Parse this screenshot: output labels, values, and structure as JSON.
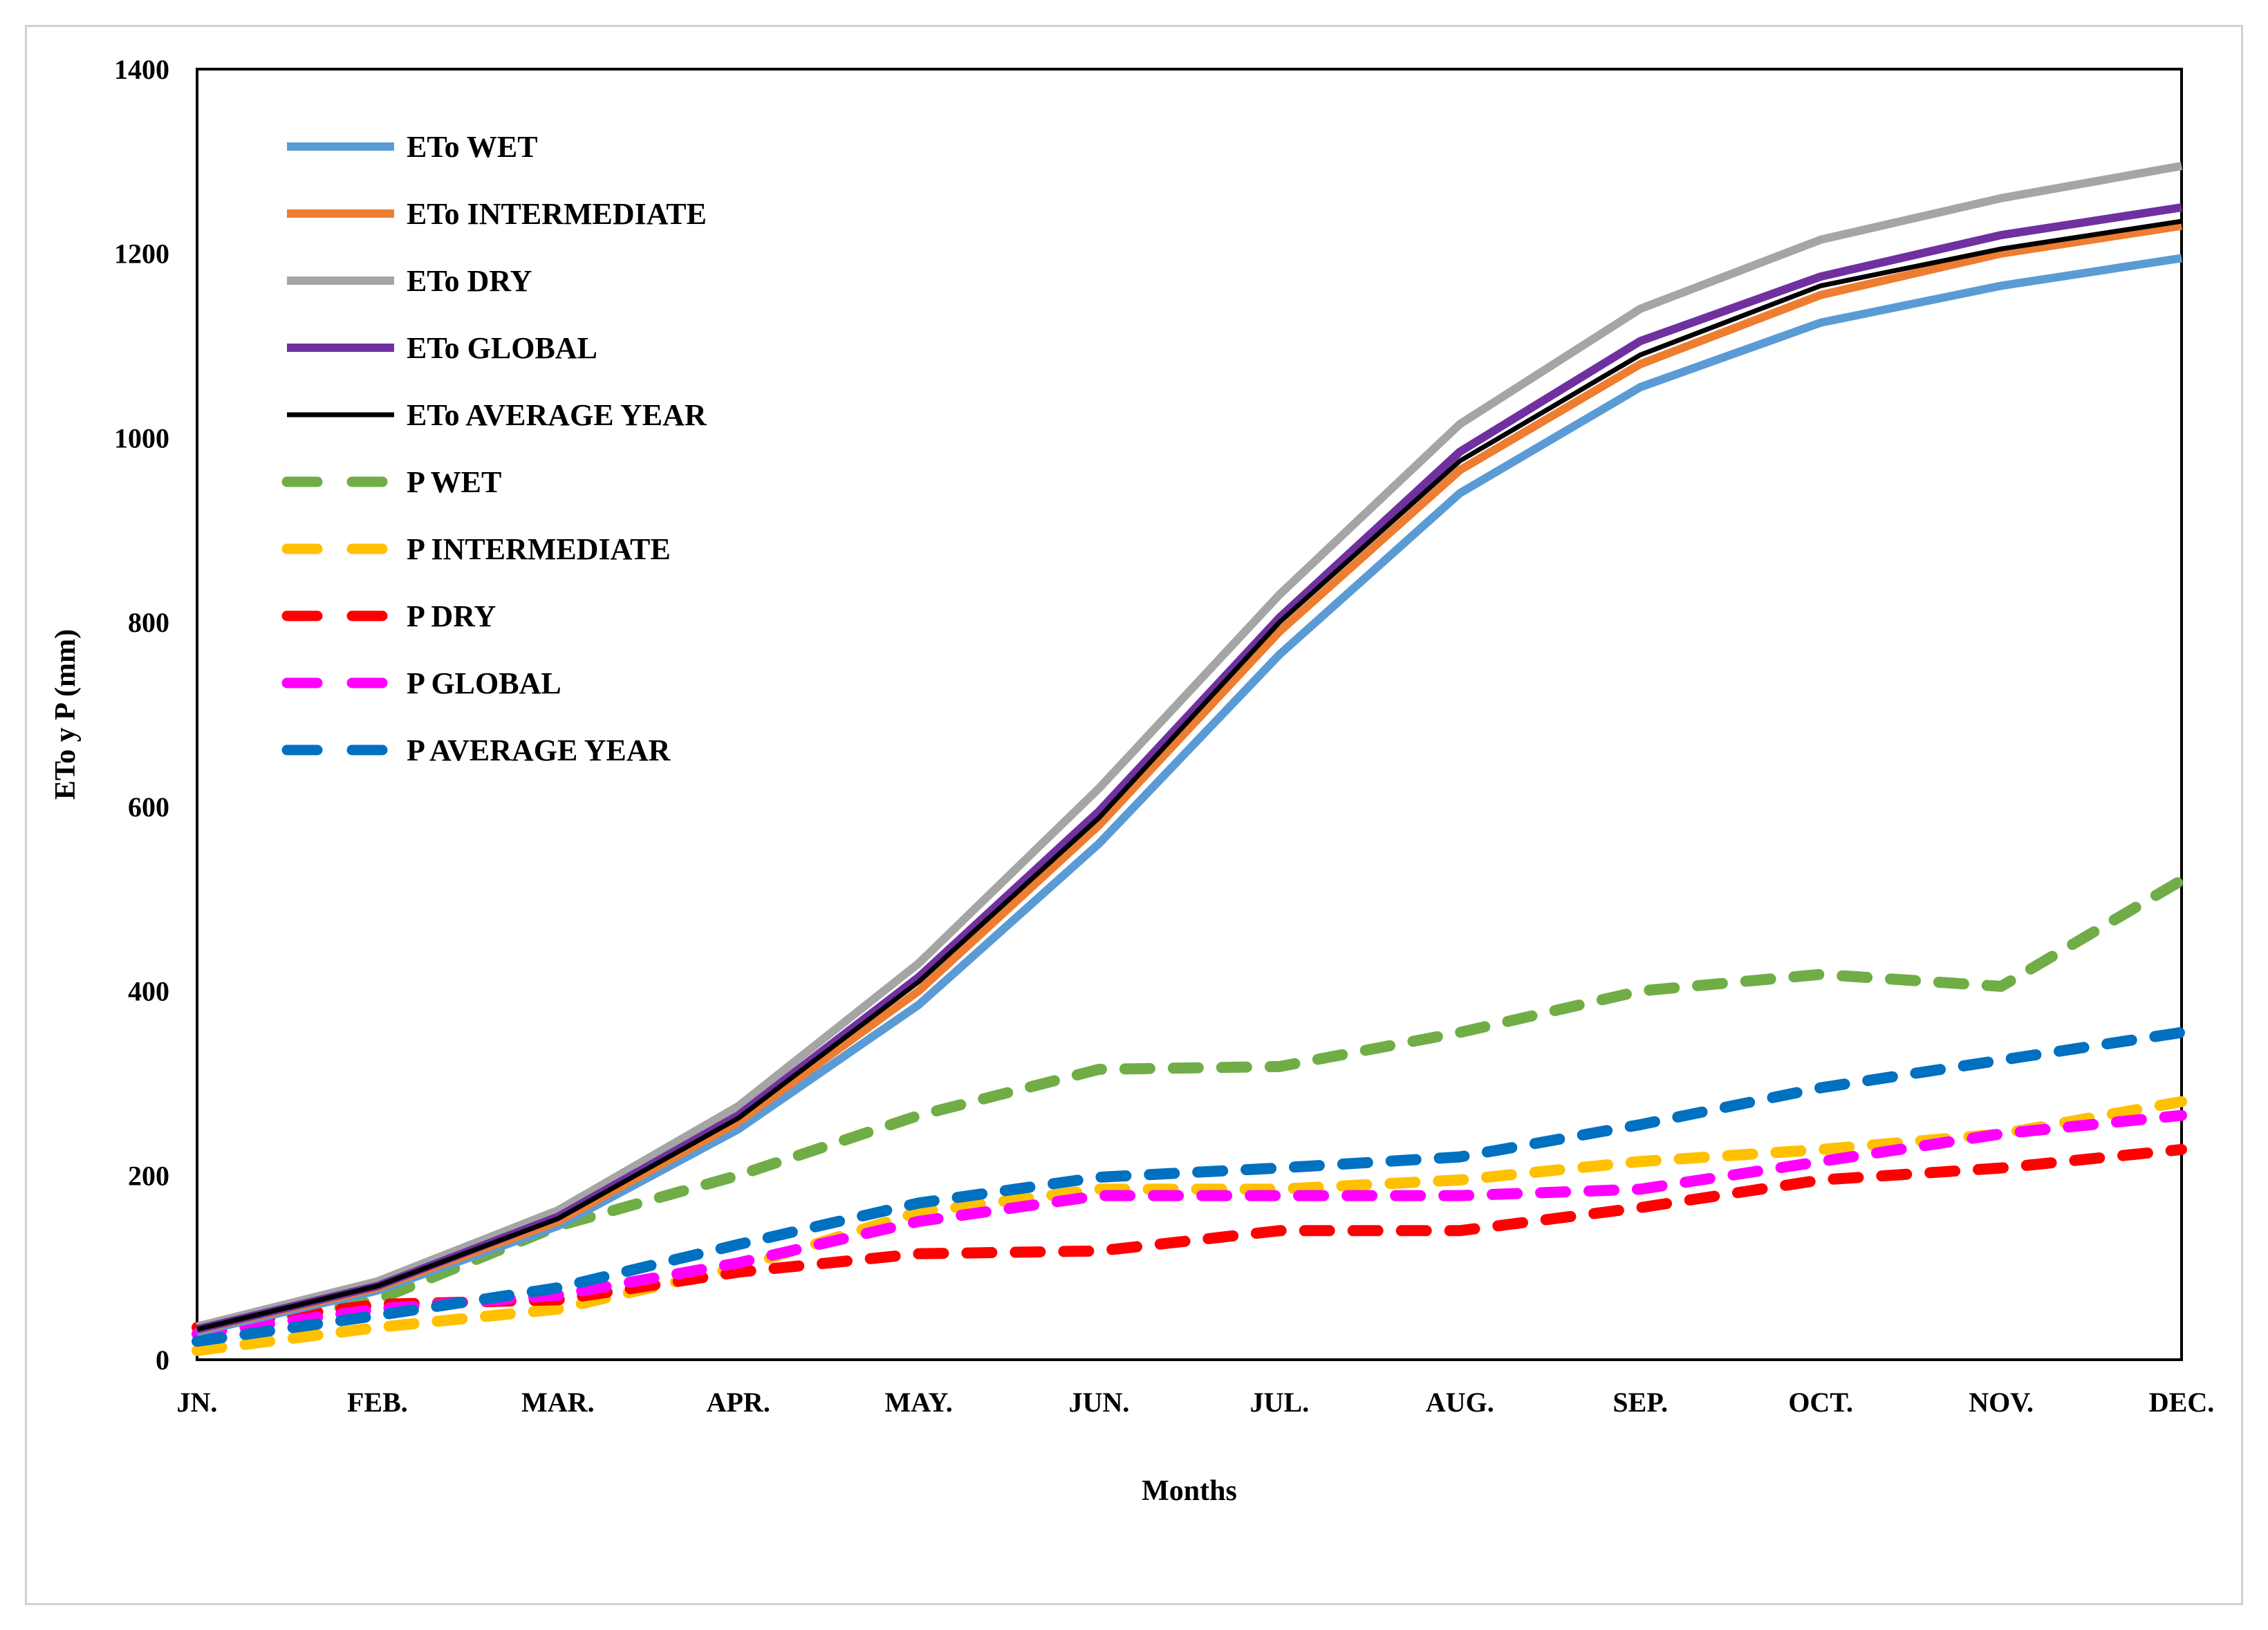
{
  "chart_data": {
    "type": "line",
    "title": "",
    "xlabel": "Months",
    "ylabel": "ETo y P (mm)",
    "ylim": [
      0,
      1400
    ],
    "yticks": [
      0,
      200,
      400,
      600,
      800,
      1000,
      1200,
      1400
    ],
    "categories": [
      "JN.",
      "FEB.",
      "MAR.",
      "APR.",
      "MAY.",
      "JUN.",
      "JUL.",
      "AUG.",
      "SEP.",
      "OCT.",
      "NOV.",
      "DEC."
    ],
    "legend_position": "top-left",
    "grid": false,
    "series": [
      {
        "name": "ETo WET",
        "color": "#5b9bd5",
        "style": "solid",
        "values": [
          30,
          75,
          145,
          250,
          385,
          560,
          765,
          940,
          1055,
          1125,
          1165,
          1195
        ]
      },
      {
        "name": "ETo INTERMEDIATE",
        "color": "#ed7d31",
        "style": "solid",
        "values": [
          32,
          78,
          150,
          258,
          400,
          580,
          790,
          965,
          1080,
          1155,
          1200,
          1230
        ]
      },
      {
        "name": "ETo DRY",
        "color": "#a5a5a5",
        "style": "solid",
        "values": [
          36,
          85,
          162,
          275,
          430,
          620,
          830,
          1015,
          1140,
          1215,
          1260,
          1295
        ]
      },
      {
        "name": "ETo GLOBAL",
        "color": "#7030a0",
        "style": "solid",
        "values": [
          33,
          80,
          155,
          265,
          415,
          595,
          805,
          985,
          1105,
          1175,
          1220,
          1250
        ]
      },
      {
        "name": "ETo AVERAGE YEAR",
        "color": "#000000",
        "style": "solid",
        "values": [
          33,
          80,
          153,
          262,
          410,
          588,
          800,
          975,
          1090,
          1165,
          1205,
          1235
        ]
      },
      {
        "name": "P WET",
        "color": "#70ad47",
        "style": "dashed",
        "values": [
          28,
          65,
          145,
          200,
          265,
          315,
          318,
          355,
          400,
          418,
          405,
          520
        ]
      },
      {
        "name": "P INTERMEDIATE",
        "color": "#ffc000",
        "style": "dashed",
        "values": [
          10,
          35,
          55,
          100,
          160,
          185,
          185,
          195,
          215,
          228,
          245,
          280
        ]
      },
      {
        "name": "P DRY",
        "color": "#ff0000",
        "style": "dashed",
        "values": [
          35,
          60,
          65,
          95,
          115,
          118,
          140,
          140,
          165,
          195,
          208,
          228
        ]
      },
      {
        "name": "P GLOBAL",
        "color": "#ff00ff",
        "style": "dashed",
        "values": [
          28,
          55,
          70,
          105,
          150,
          178,
          178,
          178,
          185,
          215,
          245,
          265
        ]
      },
      {
        "name": "P AVERAGE YEAR",
        "color": "#0070c0",
        "style": "dashed",
        "values": [
          20,
          48,
          78,
          125,
          170,
          198,
          208,
          220,
          255,
          295,
          325,
          355
        ]
      }
    ]
  }
}
